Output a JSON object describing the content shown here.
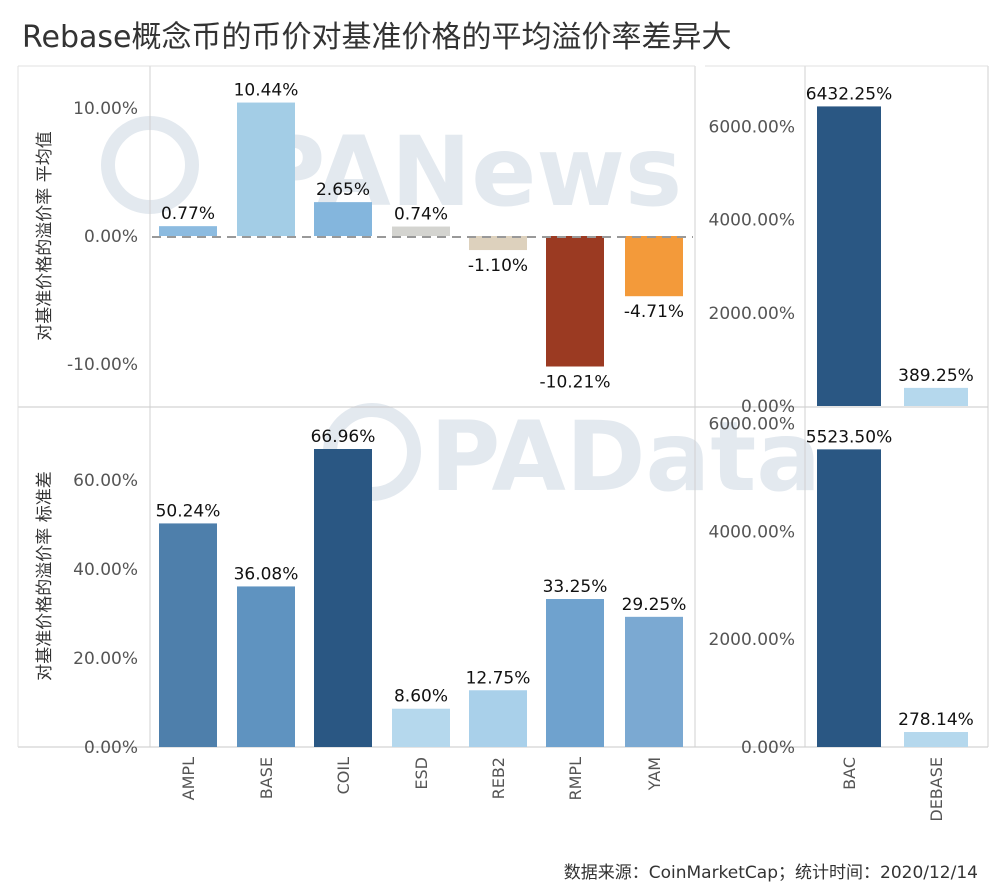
{
  "title": "Rebase概念币的币价对基准价格的平均溢价率差异大",
  "watermarks": [
    "PANews",
    "PAData"
  ],
  "footer": "数据来源：CoinMarketCap；统计时间：2020/12/14",
  "colors": {
    "AMPL_top": "#8cbbe0",
    "BASE_top": "#a3cde6",
    "COIL_top": "#84b6dd",
    "ESD_top": "#d4d4d0",
    "REB2_top": "#ddd1bd",
    "RMPL_top": "#9b3a22",
    "YAM_top": "#f39a3a",
    "AMPL_bot": "#4e7fab",
    "BASE_bot": "#5f93c0",
    "COIL_bot": "#2a5783",
    "ESD_bot": "#b5d8ed",
    "REB2_bot": "#a9d0ea",
    "RMPL_bot": "#6fa2ce",
    "YAM_bot": "#7ba9d2",
    "BAC": "#2a5783",
    "DEBASE": "#b5d8ed"
  },
  "chart_data": [
    {
      "type": "bar",
      "panel": "top-left",
      "ylabel": "对基准价格的溢价率 平均值",
      "categories": [
        "AMPL",
        "BASE",
        "COIL",
        "ESD",
        "REB2",
        "RMPL",
        "YAM"
      ],
      "values": [
        0.77,
        10.44,
        2.65,
        0.74,
        -1.1,
        -10.21,
        -4.71
      ],
      "labels": [
        "0.77%",
        "10.44%",
        "2.65%",
        "0.74%",
        "-1.10%",
        "-10.21%",
        "-4.71%"
      ],
      "yticks": [
        10,
        0,
        -10
      ],
      "ytick_labels": [
        "10.00%",
        "0.00%",
        "-10.00%"
      ],
      "ylim": [
        -13.3,
        13.3
      ]
    },
    {
      "type": "bar",
      "panel": "top-right",
      "categories": [
        "BAC",
        "DEBASE"
      ],
      "values": [
        6432.25,
        389.25
      ],
      "labels": [
        "6432.25%",
        "389.25%"
      ],
      "yticks": [
        6000,
        4000,
        2000,
        0
      ],
      "ytick_labels": [
        "6000.00%",
        "4000.00%",
        "2000.00%",
        "0.00%"
      ],
      "ylim": [
        0,
        7300
      ]
    },
    {
      "type": "bar",
      "panel": "bottom-left",
      "ylabel": "对基准价格的溢价率 标准差",
      "categories": [
        "AMPL",
        "BASE",
        "COIL",
        "ESD",
        "REB2",
        "RMPL",
        "YAM"
      ],
      "values": [
        50.24,
        36.08,
        66.96,
        8.6,
        12.75,
        33.25,
        29.25
      ],
      "labels": [
        "50.24%",
        "36.08%",
        "66.96%",
        "8.60%",
        "12.75%",
        "33.25%",
        "29.25%"
      ],
      "yticks": [
        60,
        40,
        20,
        0
      ],
      "ytick_labels": [
        "60.00%",
        "40.00%",
        "20.00%",
        "0.00%"
      ],
      "ylim": [
        0,
        75.5
      ]
    },
    {
      "type": "bar",
      "panel": "bottom-right",
      "categories": [
        "BAC",
        "DEBASE"
      ],
      "values": [
        5523.5,
        278.14
      ],
      "labels": [
        "5523.50%",
        "278.14%"
      ],
      "yticks": [
        6000,
        4000,
        2000,
        0
      ],
      "ytick_labels": [
        "6000.00%",
        "4000.00%",
        "2000.00%",
        "0.00%"
      ],
      "ylim": [
        0,
        6050
      ]
    }
  ]
}
